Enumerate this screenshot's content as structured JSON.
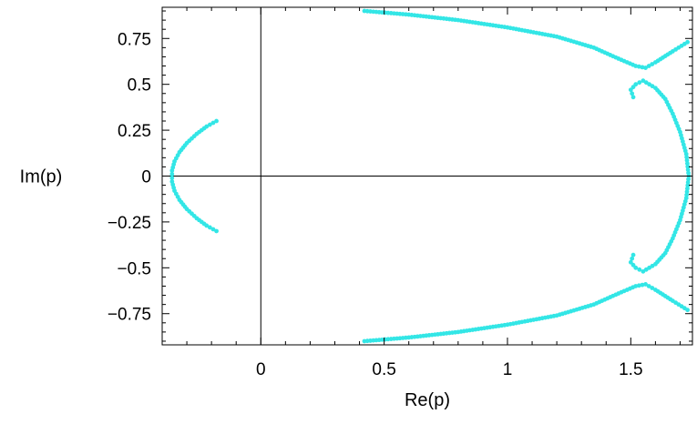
{
  "chart_data": {
    "type": "scatter",
    "xlabel": "Re(p)",
    "ylabel": "Im(p)",
    "xlim": [
      -0.4,
      1.75
    ],
    "ylim": [
      -0.92,
      0.92
    ],
    "x_ticks": [
      0,
      0.5,
      1,
      1.5
    ],
    "x_tick_labels": [
      "0",
      "0.5",
      "1",
      "1.5"
    ],
    "y_ticks": [
      0.75,
      0.5,
      0.25,
      0,
      -0.25,
      -0.5,
      -0.75
    ],
    "y_tick_labels": [
      "0.75",
      "0.5",
      "0.25",
      "0",
      "−0.25",
      "−0.5",
      "−0.75"
    ],
    "x_minor_step": 0.1,
    "y_minor_step": 0.05,
    "zero_axes": true,
    "grid": false,
    "marker_color": "#33e6e6",
    "series": [
      {
        "values": [
          [
            -0.18,
            0.3
          ],
          [
            -0.22,
            0.27
          ],
          [
            -0.26,
            0.23
          ],
          [
            -0.3,
            0.18
          ],
          [
            -0.33,
            0.13
          ],
          [
            -0.35,
            0.08
          ],
          [
            -0.36,
            0.03
          ],
          [
            -0.36,
            -0.03
          ],
          [
            -0.35,
            -0.08
          ],
          [
            -0.33,
            -0.13
          ],
          [
            -0.3,
            -0.18
          ],
          [
            -0.26,
            -0.23
          ],
          [
            -0.22,
            -0.27
          ],
          [
            -0.18,
            -0.3
          ]
        ]
      },
      {
        "values": [
          [
            0.42,
            0.9
          ],
          [
            0.6,
            0.88
          ],
          [
            0.8,
            0.85
          ],
          [
            1.0,
            0.81
          ],
          [
            1.2,
            0.76
          ],
          [
            1.35,
            0.7
          ],
          [
            1.45,
            0.64
          ],
          [
            1.52,
            0.6
          ],
          [
            1.56,
            0.59
          ],
          [
            1.6,
            0.62
          ],
          [
            1.67,
            0.68
          ],
          [
            1.73,
            0.73
          ]
        ]
      },
      {
        "values": [
          [
            1.51,
            0.43
          ],
          [
            1.5,
            0.47
          ],
          [
            1.52,
            0.5
          ],
          [
            1.55,
            0.52
          ],
          [
            1.6,
            0.48
          ],
          [
            1.64,
            0.42
          ],
          [
            1.67,
            0.34
          ],
          [
            1.7,
            0.24
          ],
          [
            1.725,
            0.12
          ],
          [
            1.735,
            0.0
          ],
          [
            1.725,
            -0.12
          ],
          [
            1.7,
            -0.24
          ],
          [
            1.67,
            -0.34
          ],
          [
            1.64,
            -0.42
          ],
          [
            1.6,
            -0.48
          ],
          [
            1.55,
            -0.52
          ],
          [
            1.52,
            -0.5
          ],
          [
            1.5,
            -0.47
          ],
          [
            1.51,
            -0.43
          ]
        ]
      },
      {
        "values": [
          [
            0.42,
            -0.9
          ],
          [
            0.6,
            -0.88
          ],
          [
            0.8,
            -0.85
          ],
          [
            1.0,
            -0.81
          ],
          [
            1.2,
            -0.76
          ],
          [
            1.35,
            -0.7
          ],
          [
            1.45,
            -0.64
          ],
          [
            1.52,
            -0.6
          ],
          [
            1.56,
            -0.59
          ],
          [
            1.6,
            -0.62
          ],
          [
            1.67,
            -0.68
          ],
          [
            1.73,
            -0.73
          ]
        ]
      }
    ]
  }
}
